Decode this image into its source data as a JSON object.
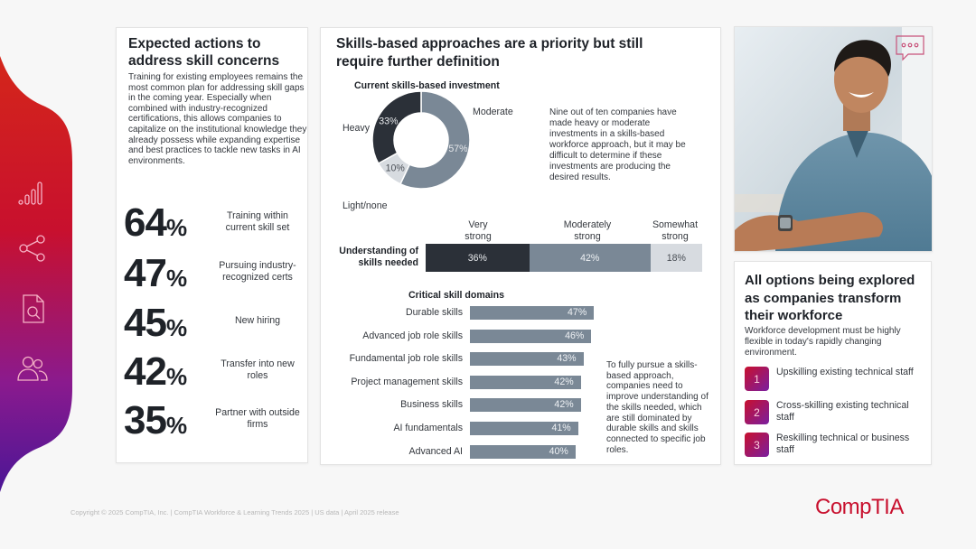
{
  "sidebar": {
    "icons": [
      "bar-chart-icon",
      "share-icon",
      "document-search-icon",
      "users-icon"
    ],
    "gradient": [
      "#d4261a",
      "#c8102e",
      "#8a1a8e",
      "#4b1696"
    ]
  },
  "left_panel": {
    "title": "Expected actions to address skill concerns",
    "body": "Training for existing employees remains the most common plan for addressing skill gaps in the coming year. Especially when combined with industry-recognized certifications, this allows companies to capitalize on the institutional knowledge they already possess while expanding expertise and best practices to tackle new tasks in AI environments.",
    "stats": [
      {
        "value": "64",
        "unit": "%",
        "label": "Training within current skill set"
      },
      {
        "value": "47",
        "unit": "%",
        "label": "Pursuing industry-recognized certs"
      },
      {
        "value": "45",
        "unit": "%",
        "label": "New hiring"
      },
      {
        "value": "42",
        "unit": "%",
        "label": "Transfer into new roles"
      },
      {
        "value": "35",
        "unit": "%",
        "label": "Partner with outside firms"
      }
    ]
  },
  "mid_panel": {
    "title": "Skills-based approaches are a priority but still require further definition",
    "donut_note": "Nine out of ten companies have made heavy or moderate investments in a skills-based workforce approach, but it may be difficult to determine if these investments are producing the desired results.",
    "domains_note": "To fully pursue a skills-based approach, companies need to improve understanding of the skills needed, which are still dominated by durable skills and skills connected to specific job roles."
  },
  "chart_data": [
    {
      "type": "pie",
      "title": "Current skills-based investment",
      "categories": [
        "Moderate",
        "Light/none",
        "Heavy"
      ],
      "values": [
        57,
        10,
        33
      ],
      "labels": [
        "57%",
        "10%",
        "33%"
      ],
      "colors": [
        "#7a8896",
        "#d7dbe0",
        "#2b3038"
      ],
      "donut": true
    },
    {
      "type": "bar",
      "stacked": true,
      "orientation": "horizontal",
      "categories": [
        "Understanding of skills needed"
      ],
      "series": [
        {
          "name": "Very strong",
          "values": [
            36
          ],
          "label": "36%",
          "color": "#2b3038",
          "text_color": "#e6e8eb"
        },
        {
          "name": "Moderately strong",
          "values": [
            42
          ],
          "label": "42%",
          "color": "#7a8896",
          "text_color": "#eef1f4"
        },
        {
          "name": "Somewhat strong",
          "values": [
            18
          ],
          "label": "18%",
          "color": "#d7dbe0",
          "text_color": "#4a4f56"
        }
      ],
      "headers": [
        "Very strong",
        "Moderately strong",
        "Somewhat strong"
      ],
      "row_label": "Understanding of skills needed"
    },
    {
      "type": "bar",
      "orientation": "horizontal",
      "title": "Critical skill domains",
      "categories": [
        "Durable skills",
        "Advanced job role skills",
        "Fundamental job role skills",
        "Project management skills",
        "Business skills",
        "AI fundamentals",
        "Advanced AI"
      ],
      "values": [
        47,
        46,
        43,
        42,
        42,
        41,
        40
      ],
      "labels": [
        "47%",
        "46%",
        "43%",
        "42%",
        "42%",
        "41%",
        "40%"
      ],
      "color": "#7a8896",
      "xlim": [
        0,
        100
      ]
    }
  ],
  "right_card": {
    "title": "All options being explored as companies transform their workforce",
    "body": "Workforce development must be highly flexible in today's rapidly changing environment.",
    "options": [
      {
        "num": "1",
        "text": "Upskilling existing technical staff"
      },
      {
        "num": "2",
        "text": "Cross-skilling existing technical staff"
      },
      {
        "num": "3",
        "text": "Reskilling technical or business staff"
      }
    ]
  },
  "photo": {
    "icon": "chat-bubble-icon",
    "alt": "Smiling professional in blue shirt"
  },
  "footer": {
    "text": "Copyright © 2025 CompTIA, Inc. | CompTIA Workforce & Learning Trends 2025 | US data | April 2025 release",
    "logo": "CompTIA",
    "brand_color": "#c8102e"
  }
}
